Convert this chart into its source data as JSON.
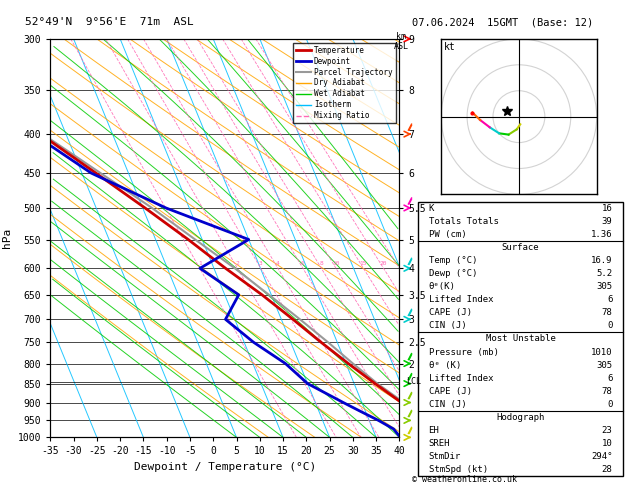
{
  "title_left": "52°49'N  9°56'E  71m  ASL",
  "title_right": "07.06.2024  15GMT  (Base: 12)",
  "xlabel": "Dewpoint / Temperature (°C)",
  "ylabel_left": "hPa",
  "pressure_levels": [
    300,
    350,
    400,
    450,
    500,
    550,
    600,
    650,
    700,
    750,
    800,
    850,
    900,
    950,
    1000
  ],
  "temp_xlim": [
    -35,
    40
  ],
  "bg_color": "#ffffff",
  "isotherm_color": "#00bfff",
  "dry_adiabat_color": "#ffa500",
  "wet_adiabat_color": "#00cc00",
  "mixing_ratio_color": "#ff69b4",
  "temperature_color": "#cc0000",
  "dewpoint_color": "#0000cc",
  "parcel_color": "#999999",
  "stats": {
    "K": 16,
    "Totals_Totals": 39,
    "PW_cm": 1.36,
    "Surface_Temp": 16.9,
    "Surface_Dewp": 5.2,
    "Surface_theta_e": 305,
    "Surface_LI": 6,
    "Surface_CAPE": 78,
    "Surface_CIN": 0,
    "MU_Pressure": 1010,
    "MU_theta_e": 305,
    "MU_LI": 6,
    "MU_CAPE": 78,
    "MU_CIN": 0,
    "Hodo_EH": 23,
    "Hodo_SREH": 10,
    "Hodo_StmDir": 294,
    "Hodo_StmSpd": 28
  },
  "temp_profile": {
    "pressure": [
      1000,
      975,
      950,
      925,
      900,
      850,
      800,
      750,
      700,
      650,
      600,
      550,
      500,
      450,
      400,
      350,
      300
    ],
    "temp": [
      17.0,
      15.5,
      13.5,
      11.0,
      8.5,
      4.5,
      0.5,
      -3.5,
      -7.5,
      -12.0,
      -17.5,
      -23.0,
      -29.5,
      -37.0,
      -45.5,
      -55.5,
      -58.0
    ]
  },
  "dewp_profile": {
    "pressure": [
      1000,
      975,
      950,
      925,
      900,
      850,
      800,
      750,
      700,
      650,
      600,
      550,
      500,
      450,
      400,
      350,
      300
    ],
    "dewp": [
      5.2,
      4.5,
      2.0,
      -1.0,
      -4.0,
      -10.0,
      -13.0,
      -18.0,
      -22.0,
      -17.0,
      -23.0,
      -10.0,
      -25.0,
      -38.0,
      -47.0,
      -57.0,
      -60.0
    ]
  },
  "parcel_profile": {
    "pressure": [
      1000,
      950,
      900,
      850,
      800,
      750,
      700,
      650,
      600,
      550,
      500,
      450,
      400,
      350,
      300
    ],
    "temp": [
      17.0,
      13.0,
      9.0,
      5.0,
      1.5,
      -2.0,
      -6.0,
      -10.5,
      -15.5,
      -21.5,
      -28.0,
      -36.0,
      -45.0,
      -55.0,
      -62.0
    ]
  },
  "mixing_ratio_lines": [
    1,
    2,
    3,
    4,
    6,
    8,
    10,
    15,
    20,
    25
  ],
  "lcl_pressure": 845,
  "wind_pressures": [
    300,
    400,
    500,
    600,
    700,
    800,
    850,
    900,
    950,
    1000
  ],
  "wind_colors": [
    "#ff0000",
    "#ff4400",
    "#ff00bb",
    "#00cccc",
    "#00cccc",
    "#00cc00",
    "#00cc00",
    "#88cc00",
    "#88cc00",
    "#cccc00"
  ]
}
